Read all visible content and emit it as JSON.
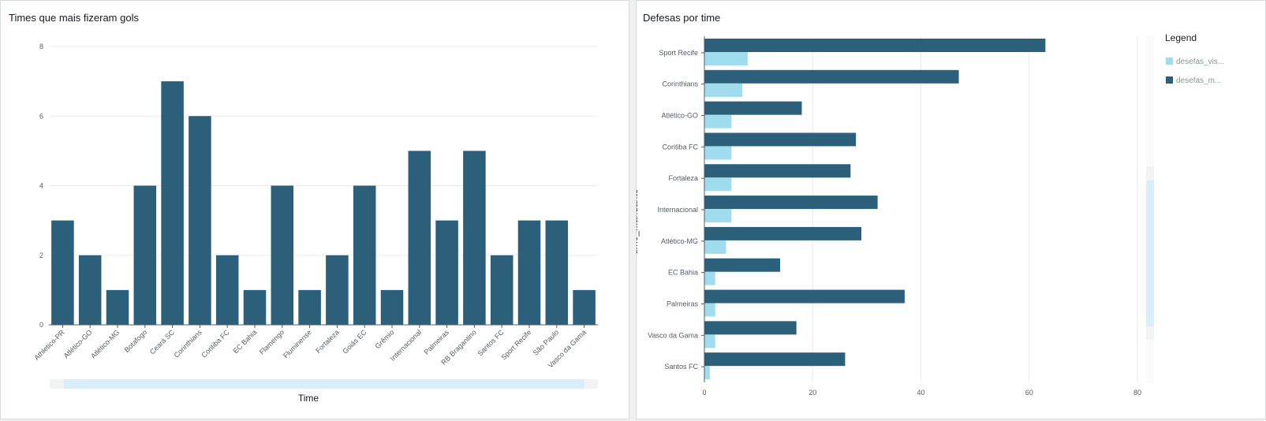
{
  "charts": {
    "goals": {
      "title": "Times que mais fizeram gols",
      "xlabel": "Time"
    },
    "defenses": {
      "title": "Defesas por time",
      "ylabel": "time_mandante",
      "legend_title": "Legend",
      "legend_items": [
        "desefas_vis...",
        "desefas_m..."
      ]
    }
  },
  "colors": {
    "dark": "#2b5f7a",
    "light": "#9fdcee",
    "grid": "#e9ebed",
    "axis": "#545b64"
  },
  "chart_data": [
    {
      "type": "bar",
      "title": "Times que mais fizeram gols",
      "xlabel": "Time",
      "ylabel": "",
      "ylim": [
        0,
        8
      ],
      "yticks": [
        0,
        2,
        4,
        6,
        8
      ],
      "grid": true,
      "categories": [
        "Athletico-PR",
        "Atlético-GO",
        "Atlético-MG",
        "Botafogo",
        "Ceará SC",
        "Corinthians",
        "Coritiba FC",
        "EC Bahia",
        "Flamengo",
        "Fluminense",
        "Fortaleza",
        "Goiás EC",
        "Grêmio",
        "Internacional",
        "Palmeiras",
        "RB Bragantino",
        "Santos FC",
        "Sport Recife",
        "São Paulo",
        "Vasco da Gama"
      ],
      "values": [
        3,
        2,
        1,
        4,
        7,
        6,
        2,
        1,
        4,
        1,
        2,
        4,
        1,
        5,
        3,
        5,
        2,
        3,
        3,
        1
      ]
    },
    {
      "type": "bar",
      "orientation": "horizontal",
      "title": "Defesas por time",
      "ylabel": "time_mandante",
      "xlabel": "",
      "xlim": [
        0,
        80
      ],
      "xticks": [
        0,
        20,
        40,
        60,
        80
      ],
      "grid": true,
      "legend": "right",
      "categories": [
        "Sport Recife",
        "Corinthians",
        "Atlético-GO",
        "Coritiba FC",
        "Fortaleza",
        "Internacional",
        "Atlético-MG",
        "EC Bahia",
        "Palmeiras",
        "Vasco da Gama",
        "Santos FC"
      ],
      "series": [
        {
          "name": "desefas_m...",
          "values": [
            63,
            47,
            18,
            28,
            27,
            32,
            29,
            14,
            37,
            17,
            26
          ]
        },
        {
          "name": "desefas_vis...",
          "values": [
            8,
            7,
            5,
            5,
            5,
            5,
            4,
            2,
            2,
            2,
            1
          ]
        }
      ]
    }
  ]
}
